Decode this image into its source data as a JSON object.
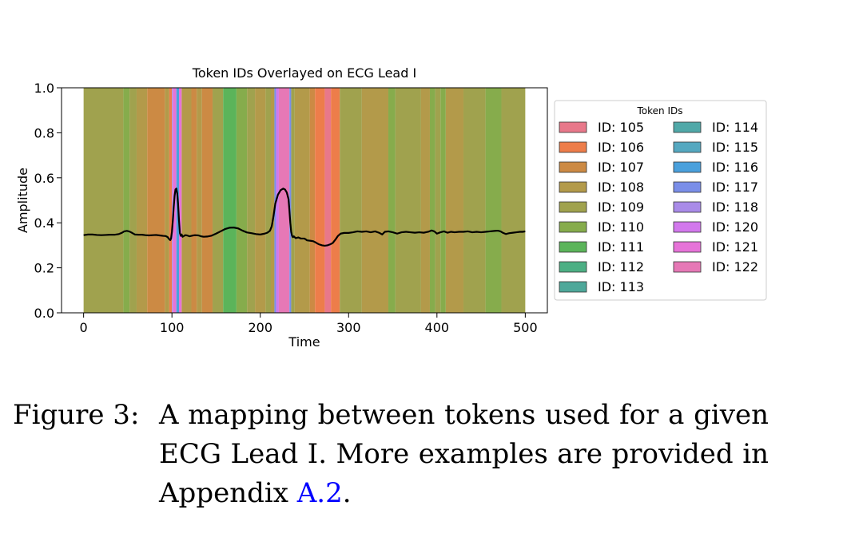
{
  "chart_data": {
    "type": "line",
    "title": "Token IDs Overlayed on ECG Lead I",
    "xlabel": "Time",
    "ylabel": "Amplitude",
    "xlim": [
      -25,
      525
    ],
    "ylim": [
      0.0,
      1.0
    ],
    "xticks": [
      0,
      100,
      200,
      300,
      400,
      500
    ],
    "xtick_labels": [
      "0",
      "100",
      "200",
      "300",
      "400",
      "500"
    ],
    "yticks": [
      0.0,
      0.2,
      0.4,
      0.6,
      0.8,
      1.0
    ],
    "ytick_labels": [
      "0.0",
      "0.2",
      "0.4",
      "0.6",
      "0.8",
      "1.0"
    ],
    "legend": {
      "title": "Token IDs",
      "placement": "right",
      "entries": [
        {
          "id": 105,
          "label": "ID: 105",
          "color": "#e8788a"
        },
        {
          "id": 106,
          "label": "ID: 106",
          "color": "#ed7d4a"
        },
        {
          "id": 107,
          "label": "ID: 107",
          "color": "#cc8a44"
        },
        {
          "id": 108,
          "label": "ID: 108",
          "color": "#b39a4a"
        },
        {
          "id": 109,
          "label": "ID: 109",
          "color": "#a0a24e"
        },
        {
          "id": 110,
          "label": "ID: 110",
          "color": "#86ac4c"
        },
        {
          "id": 111,
          "label": "ID: 111",
          "color": "#5bb45a"
        },
        {
          "id": 112,
          "label": "ID: 112",
          "color": "#4caf84"
        },
        {
          "id": 113,
          "label": "ID: 113",
          "color": "#4ea89a"
        },
        {
          "id": 114,
          "label": "ID: 114",
          "color": "#50a8a8"
        },
        {
          "id": 115,
          "label": "ID: 115",
          "color": "#55a8c0"
        },
        {
          "id": 116,
          "label": "ID: 116",
          "color": "#4aa0dc"
        },
        {
          "id": 117,
          "label": "ID: 117",
          "color": "#7a8ee8"
        },
        {
          "id": 118,
          "label": "ID: 118",
          "color": "#a98be8"
        },
        {
          "id": 120,
          "label": "ID: 120",
          "color": "#d278ec"
        },
        {
          "id": 121,
          "label": "ID: 121",
          "color": "#e673d8"
        },
        {
          "id": 122,
          "label": "ID: 122",
          "color": "#e678b6"
        }
      ]
    },
    "token_segments": [
      {
        "x0": 0,
        "x1": 45,
        "id": 109
      },
      {
        "x0": 45,
        "x1": 52,
        "id": 110
      },
      {
        "x0": 52,
        "x1": 60,
        "id": 109
      },
      {
        "x0": 60,
        "x1": 72,
        "id": 108
      },
      {
        "x0": 72,
        "x1": 92,
        "id": 107
      },
      {
        "x0": 92,
        "x1": 97,
        "id": 108
      },
      {
        "x0": 97,
        "x1": 100,
        "id": 106
      },
      {
        "x0": 100,
        "x1": 101,
        "id": 118
      },
      {
        "x0": 101,
        "x1": 105,
        "id": 121
      },
      {
        "x0": 105,
        "x1": 108,
        "id": 116
      },
      {
        "x0": 108,
        "x1": 111,
        "id": 121
      },
      {
        "x0": 111,
        "x1": 122,
        "id": 108
      },
      {
        "x0": 122,
        "x1": 128,
        "id": 107
      },
      {
        "x0": 128,
        "x1": 134,
        "id": 108
      },
      {
        "x0": 134,
        "x1": 146,
        "id": 107
      },
      {
        "x0": 146,
        "x1": 158,
        "id": 109
      },
      {
        "x0": 158,
        "x1": 173,
        "id": 111
      },
      {
        "x0": 173,
        "x1": 185,
        "id": 110
      },
      {
        "x0": 185,
        "x1": 194,
        "id": 109
      },
      {
        "x0": 194,
        "x1": 206,
        "id": 108
      },
      {
        "x0": 206,
        "x1": 212,
        "id": 109
      },
      {
        "x0": 212,
        "x1": 216,
        "id": 108
      },
      {
        "x0": 216,
        "x1": 218,
        "id": 117
      },
      {
        "x0": 218,
        "x1": 221,
        "id": 120
      },
      {
        "x0": 221,
        "x1": 233,
        "id": 122
      },
      {
        "x0": 233,
        "x1": 235,
        "id": 117
      },
      {
        "x0": 235,
        "x1": 239,
        "id": 109
      },
      {
        "x0": 239,
        "x1": 256,
        "id": 108
      },
      {
        "x0": 256,
        "x1": 262,
        "id": 107
      },
      {
        "x0": 262,
        "x1": 273,
        "id": 106
      },
      {
        "x0": 273,
        "x1": 280,
        "id": 105
      },
      {
        "x0": 280,
        "x1": 290,
        "id": 106
      },
      {
        "x0": 290,
        "x1": 315,
        "id": 109
      },
      {
        "x0": 315,
        "x1": 345,
        "id": 108
      },
      {
        "x0": 345,
        "x1": 353,
        "id": 110
      },
      {
        "x0": 353,
        "x1": 382,
        "id": 109
      },
      {
        "x0": 382,
        "x1": 392,
        "id": 108
      },
      {
        "x0": 392,
        "x1": 398,
        "id": 110
      },
      {
        "x0": 398,
        "x1": 404,
        "id": 109
      },
      {
        "x0": 404,
        "x1": 410,
        "id": 110
      },
      {
        "x0": 410,
        "x1": 430,
        "id": 108
      },
      {
        "x0": 430,
        "x1": 455,
        "id": 109
      },
      {
        "x0": 455,
        "x1": 473,
        "id": 110
      },
      {
        "x0": 473,
        "x1": 500,
        "id": 109
      }
    ],
    "series": [
      {
        "color": "#000000",
        "points": [
          [
            0,
            0.345
          ],
          [
            5,
            0.348
          ],
          [
            10,
            0.348
          ],
          [
            15,
            0.346
          ],
          [
            20,
            0.345
          ],
          [
            25,
            0.346
          ],
          [
            30,
            0.347
          ],
          [
            35,
            0.347
          ],
          [
            40,
            0.35
          ],
          [
            43,
            0.355
          ],
          [
            46,
            0.362
          ],
          [
            49,
            0.364
          ],
          [
            52,
            0.361
          ],
          [
            55,
            0.355
          ],
          [
            58,
            0.348
          ],
          [
            62,
            0.347
          ],
          [
            66,
            0.347
          ],
          [
            70,
            0.345
          ],
          [
            74,
            0.344
          ],
          [
            78,
            0.345
          ],
          [
            82,
            0.346
          ],
          [
            86,
            0.344
          ],
          [
            90,
            0.342
          ],
          [
            93,
            0.341
          ],
          [
            95,
            0.337
          ],
          [
            97,
            0.327
          ],
          [
            98,
            0.323
          ],
          [
            99,
            0.33
          ],
          [
            100,
            0.36
          ],
          [
            101,
            0.41
          ],
          [
            102,
            0.47
          ],
          [
            103,
            0.52
          ],
          [
            104,
            0.548
          ],
          [
            105,
            0.552
          ],
          [
            106,
            0.53
          ],
          [
            107,
            0.48
          ],
          [
            108,
            0.41
          ],
          [
            109,
            0.355
          ],
          [
            110,
            0.342
          ],
          [
            111,
            0.348
          ],
          [
            112,
            0.338
          ],
          [
            113,
            0.34
          ],
          [
            115,
            0.345
          ],
          [
            117,
            0.344
          ],
          [
            120,
            0.34
          ],
          [
            123,
            0.343
          ],
          [
            126,
            0.345
          ],
          [
            130,
            0.344
          ],
          [
            133,
            0.34
          ],
          [
            136,
            0.338
          ],
          [
            140,
            0.339
          ],
          [
            145,
            0.343
          ],
          [
            150,
            0.352
          ],
          [
            155,
            0.362
          ],
          [
            160,
            0.372
          ],
          [
            165,
            0.378
          ],
          [
            170,
            0.379
          ],
          [
            175,
            0.375
          ],
          [
            180,
            0.365
          ],
          [
            185,
            0.357
          ],
          [
            190,
            0.354
          ],
          [
            195,
            0.35
          ],
          [
            200,
            0.348
          ],
          [
            205,
            0.352
          ],
          [
            208,
            0.356
          ],
          [
            211,
            0.365
          ],
          [
            213,
            0.385
          ],
          [
            215,
            0.43
          ],
          [
            217,
            0.485
          ],
          [
            220,
            0.525
          ],
          [
            223,
            0.545
          ],
          [
            226,
            0.552
          ],
          [
            228,
            0.548
          ],
          [
            230,
            0.535
          ],
          [
            232,
            0.505
          ],
          [
            233,
            0.455
          ],
          [
            234,
            0.4
          ],
          [
            235,
            0.36
          ],
          [
            236,
            0.342
          ],
          [
            237,
            0.336
          ],
          [
            238,
            0.34
          ],
          [
            240,
            0.332
          ],
          [
            243,
            0.335
          ],
          [
            246,
            0.33
          ],
          [
            250,
            0.33
          ],
          [
            253,
            0.322
          ],
          [
            257,
            0.32
          ],
          [
            260,
            0.318
          ],
          [
            263,
            0.312
          ],
          [
            266,
            0.305
          ],
          [
            270,
            0.3
          ],
          [
            273,
            0.298
          ],
          [
            276,
            0.3
          ],
          [
            279,
            0.304
          ],
          [
            282,
            0.31
          ],
          [
            285,
            0.325
          ],
          [
            288,
            0.342
          ],
          [
            291,
            0.352
          ],
          [
            295,
            0.355
          ],
          [
            300,
            0.355
          ],
          [
            305,
            0.358
          ],
          [
            310,
            0.362
          ],
          [
            315,
            0.36
          ],
          [
            320,
            0.362
          ],
          [
            325,
            0.358
          ],
          [
            330,
            0.362
          ],
          [
            335,
            0.355
          ],
          [
            338,
            0.348
          ],
          [
            341,
            0.36
          ],
          [
            345,
            0.362
          ],
          [
            350,
            0.358
          ],
          [
            355,
            0.352
          ],
          [
            360,
            0.358
          ],
          [
            365,
            0.36
          ],
          [
            370,
            0.358
          ],
          [
            375,
            0.356
          ],
          [
            380,
            0.358
          ],
          [
            385,
            0.356
          ],
          [
            390,
            0.36
          ],
          [
            394,
            0.366
          ],
          [
            397,
            0.362
          ],
          [
            400,
            0.352
          ],
          [
            404,
            0.358
          ],
          [
            408,
            0.362
          ],
          [
            412,
            0.356
          ],
          [
            416,
            0.36
          ],
          [
            420,
            0.358
          ],
          [
            425,
            0.36
          ],
          [
            430,
            0.36
          ],
          [
            435,
            0.362
          ],
          [
            440,
            0.358
          ],
          [
            445,
            0.36
          ],
          [
            450,
            0.358
          ],
          [
            455,
            0.36
          ],
          [
            460,
            0.362
          ],
          [
            465,
            0.364
          ],
          [
            469,
            0.365
          ],
          [
            472,
            0.362
          ],
          [
            475,
            0.355
          ],
          [
            478,
            0.35
          ],
          [
            482,
            0.354
          ],
          [
            486,
            0.356
          ],
          [
            490,
            0.358
          ],
          [
            494,
            0.36
          ],
          [
            497,
            0.36
          ],
          [
            500,
            0.362
          ]
        ]
      }
    ]
  },
  "caption": {
    "label": "Figure 3:",
    "text": "A mapping between tokens used for a given ECG Lead I. More examples are provided in Appendix ",
    "link": "A.2",
    "end": "."
  }
}
